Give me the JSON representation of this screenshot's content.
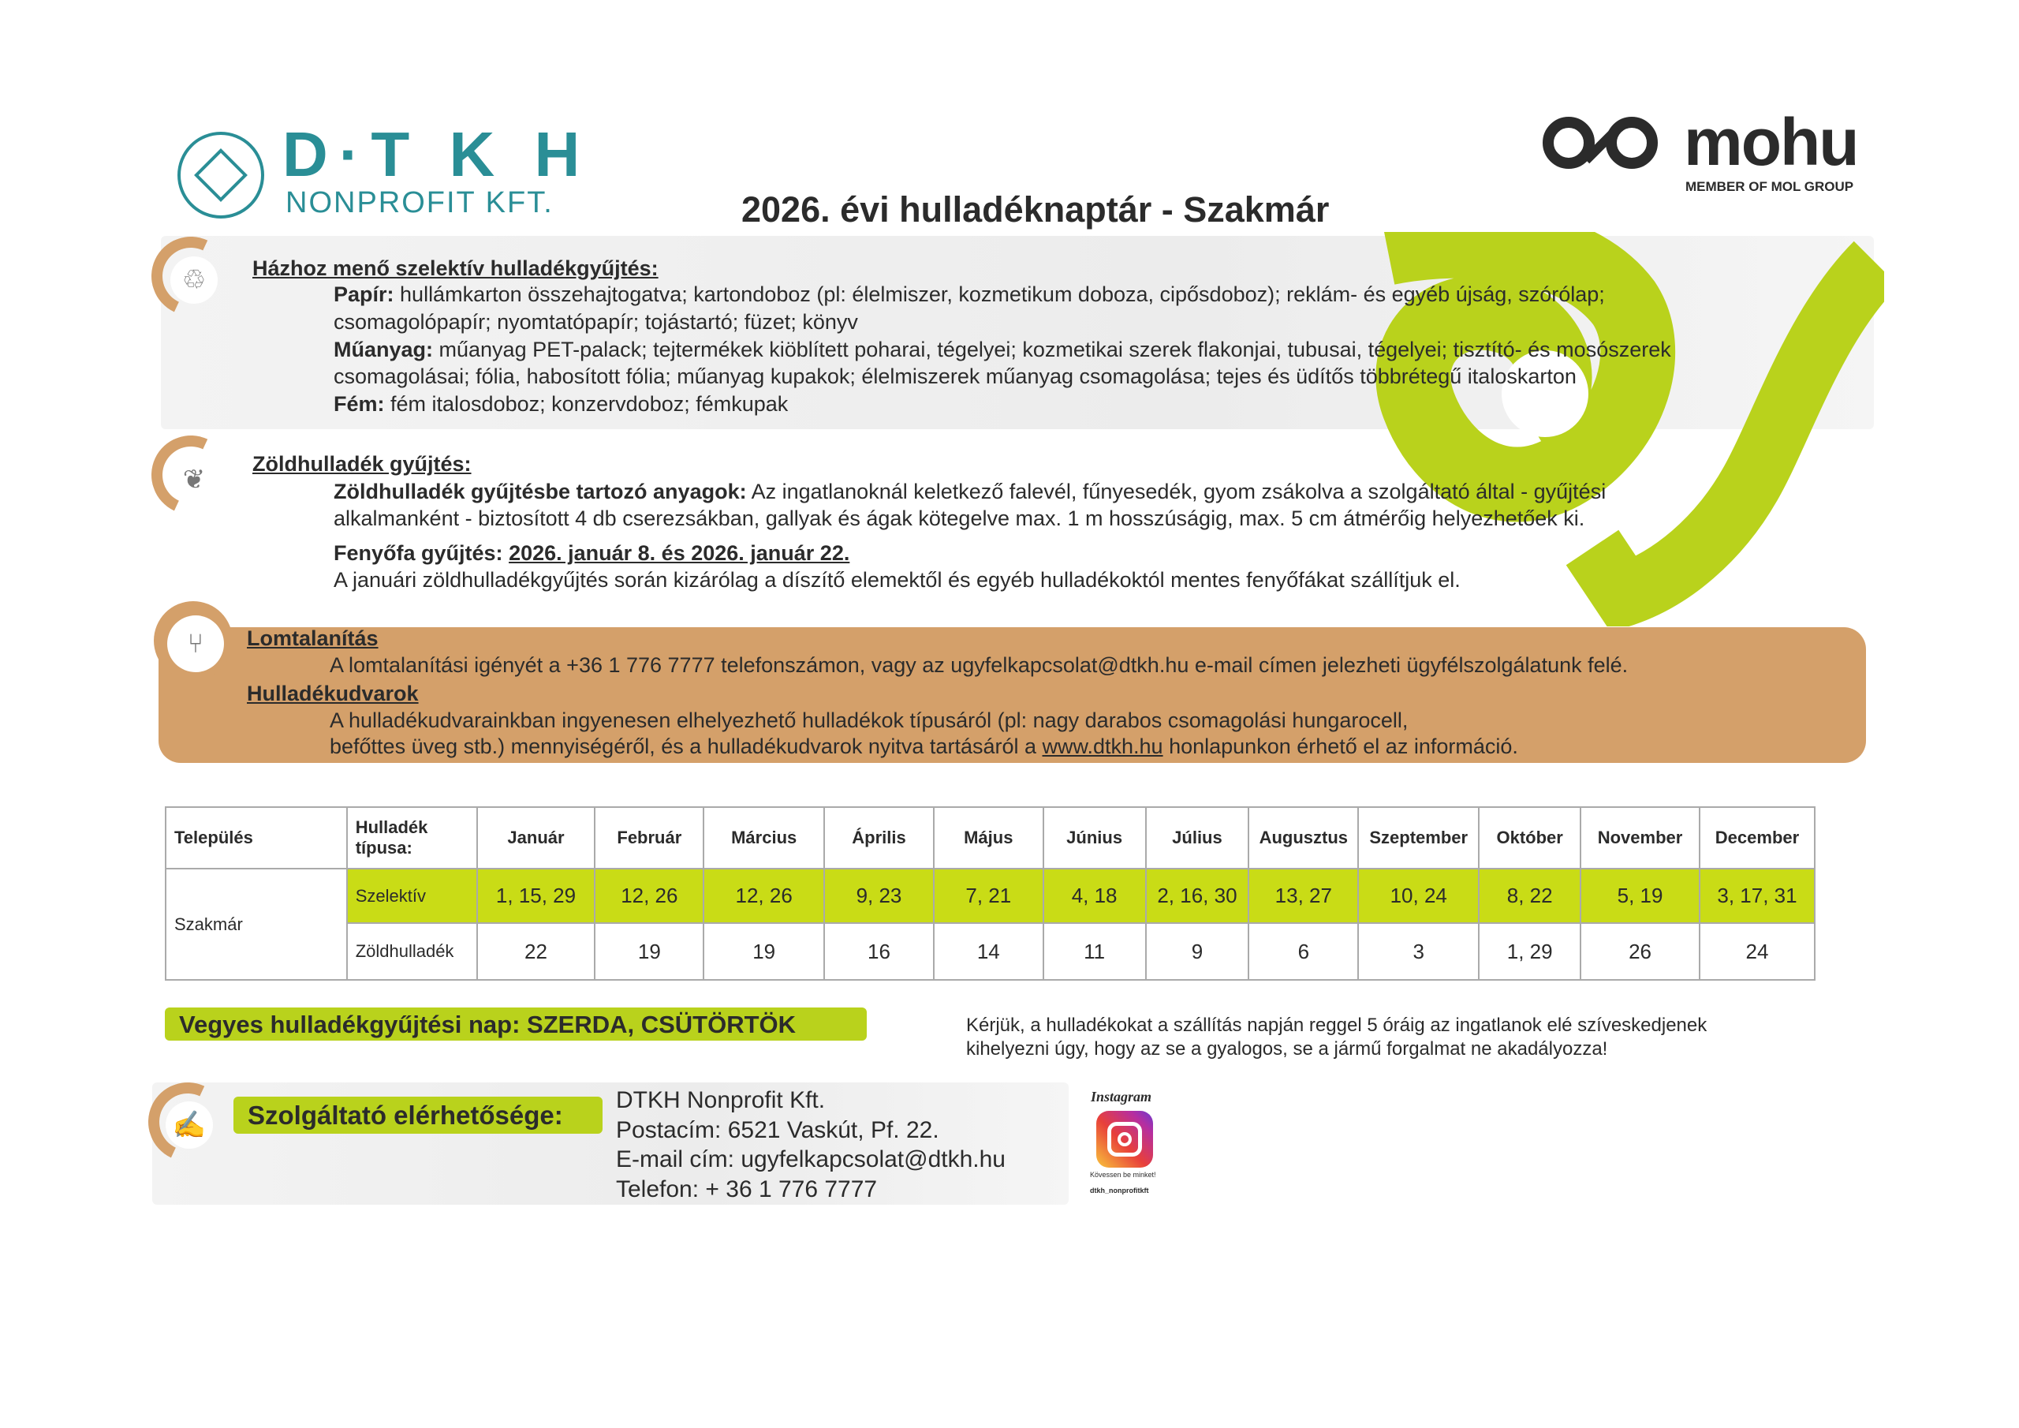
{
  "header": {
    "logo_dtkh_main": "D·T K H",
    "logo_dtkh_sub": "NONPROFIT KFT.",
    "title": "2026. évi hulladéknaptár - Szakmár",
    "logo_mohu": "mohu",
    "logo_mohu_sub": "MEMBER OF MOL GROUP"
  },
  "colors": {
    "teal": "#2a8e96",
    "orange": "#d4a06a",
    "lime": "#b9d21c",
    "table_highlight": "#c9dc16"
  },
  "selective": {
    "heading": "Házhoz menő szelektív hulladékgyűjtés:",
    "paper_label": "Papír:",
    "paper_line1": " hullámkarton összehajtogatva; kartondoboz (pl: élelmiszer, kozmetikum doboza, cipősdoboz); reklám- és egyéb újság, szórólap;",
    "paper_line2": "csomagolópapír; nyomtatópapír; tojástartó; füzet; könyv",
    "plastic_label": "Műanyag:",
    "plastic_line1": " műanyag PET-palack; tejtermékek kiöblített poharai, tégelyei; kozmetikai szerek flakonjai, tubusai, tégelyei; tisztító- és mosószerek",
    "plastic_line2": "csomagolásai; fólia, habosított fólia; műanyag kupakok; élelmiszerek műanyag csomagolása; tejes és üdítős többrétegű italoskarton",
    "metal_label": "Fém:",
    "metal_line": " fém italosdoboz; konzervdoboz; fémkupak"
  },
  "green": {
    "heading": "Zöldhulladék gyűjtés:",
    "materials_label": "Zöldhulladék gyűjtésbe tartozó anyagok:",
    "materials_line1": " Az ingatlanoknál keletkező falevél, fűnyesedék, gyom zsákolva a szolgáltató által - gyűjtési",
    "materials_line2": "alkalmanként - biztosított 4 db cserezsákban, gallyak és ágak kötegelve max. 1 m hosszúságig, max. 5 cm átmérőig helyezhetőek ki.",
    "tree_label": "Fenyőfa gyűjtés:",
    "tree_dates": "2026. január 8. és 2026. január 22.",
    "tree_note": "A januári zöldhulladékgyűjtés során kizárólag a díszítő elemektől és egyéb hulladékoktól mentes fenyőfákat szállítjuk el."
  },
  "bulky": {
    "heading": "Lomtalanítás",
    "text": "A lomtalanítási igényét a +36 1 776 7777 telefonszámon, vagy az ugyfelkapcsolat@dtkh.hu  e-mail címen jelezheti ügyfélszolgálatunk felé.",
    "yards_heading": "Hulladékudvarok",
    "yards_line1": "A hulladékudvarainkban ingyenesen elhelyezhető hulladékok típusáról (pl: nagy darabos csomagolási hungarocell,",
    "yards_line2a": "befőttes üveg stb.) mennyiségéről, és a hulladékudvarok nyitva tartásáról a ",
    "yards_link": "www.dtkh.hu",
    "yards_line2b": " honlapunkon érhető el az információ."
  },
  "table": {
    "col_settlement": "Település",
    "col_type": "Hulladék típusa:",
    "months": [
      "Január",
      "Február",
      "Március",
      "Április",
      "Május",
      "Június",
      "Július",
      "Augusztus",
      "Szeptember",
      "Október",
      "November",
      "December"
    ],
    "settlement": "Szakmár",
    "selective_label": "Szelektív",
    "selective": [
      "1, 15, 29",
      "12, 26",
      "12, 26",
      "9, 23",
      "7, 21",
      "4, 18",
      "2, 16, 30",
      "13, 27",
      "10, 24",
      "8, 22",
      "5, 19",
      "3, 17, 31"
    ],
    "green_label": "Zöldhulladék",
    "green": [
      "22",
      "19",
      "19",
      "16",
      "14",
      "11",
      "9",
      "6",
      "3",
      "1, 29",
      "26",
      "24"
    ]
  },
  "mixed": {
    "label": "Vegyes hulladékgyűjtési nap: SZERDA, CSÜTÖRTÖK"
  },
  "notice": {
    "line1": "Kérjük, a hulladékokat a szállítás napján reggel 5 óráig az ingatlanok elé szíveskedjenek",
    "line2": "kihelyezni úgy, hogy az se a gyalogos, se a jármű forgalmat ne akadályozza!"
  },
  "contact": {
    "label": "Szolgáltató elérhetősége:",
    "company": "DTKH Nonprofit Kft.",
    "address": "Postacím: 6521 Vaskút, Pf. 22.",
    "email": "E-mail cím: ugyfelkapcsolat@dtkh.hu",
    "phone": "Telefon: + 36 1 776 7777"
  },
  "instagram": {
    "title": "Instagram",
    "follow": "Kövessen be minket!",
    "handle": "dtkh_nonprofitkft"
  }
}
